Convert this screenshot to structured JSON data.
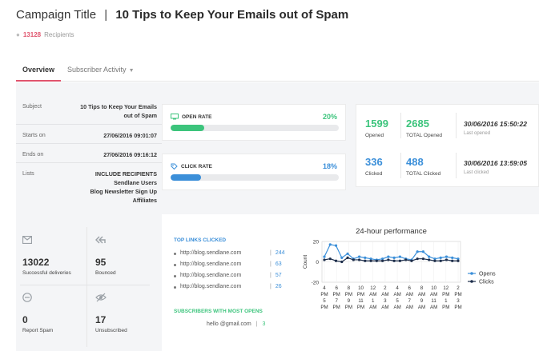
{
  "header": {
    "label": "Campaign Title",
    "separator": "|",
    "subject": "10 Tips to Keep Your Emails out of Spam",
    "recipients_count": "13128",
    "recipients_label": "Recipients"
  },
  "tabs": [
    {
      "label": "Overview",
      "active": true
    },
    {
      "label": "Subscriber Activity",
      "active": false
    }
  ],
  "details": {
    "subject_key": "Subject",
    "subject_value_line1": "10 Tips to Keep Your Emails",
    "subject_value_line2": "out of Spam",
    "starts_key": "Starts on",
    "starts_value": "27/06/2016 09:01:07",
    "ends_key": "Ends on",
    "ends_value": "27/06/2016 09:16:12",
    "lists_key": "Lists",
    "lists_values": [
      "INCLUDE RECIPIENTS",
      "Sendlane Users",
      "Blog Newsletter Sign Up",
      "Affiliates"
    ]
  },
  "open_rate": {
    "label": "OPEN RATE",
    "percent_text": "20%",
    "fraction": 0.2,
    "color": "#3cc47c",
    "icon": "monitor-icon"
  },
  "click_rate": {
    "label": "CLICK RATE",
    "percent_text": "18%",
    "fraction": 0.18,
    "color": "#3b8fd9",
    "icon": "tag-icon"
  },
  "stats": {
    "opened": {
      "value": "1599",
      "label": "Opened"
    },
    "total_opened": {
      "value": "2685",
      "label": "TOTAL Opened"
    },
    "last_opened": {
      "value": "30/06/2016 15:50:22",
      "label": "Last opened"
    },
    "clicked": {
      "value": "336",
      "label": "Clicked"
    },
    "total_clicked": {
      "value": "488",
      "label": "TOTAL Clicked"
    },
    "last_clicked": {
      "value": "30/06/2016 13:59:05",
      "label": "Last clicked"
    }
  },
  "tiles": [
    {
      "icon": "envelope-icon",
      "value": "13022",
      "label": "Successful deliveries"
    },
    {
      "icon": "reply-all-icon",
      "value": "95",
      "label": "Bounced"
    },
    {
      "icon": "minus-circle-icon",
      "value": "0",
      "label": "Report Spam"
    },
    {
      "icon": "eye-slash-icon",
      "value": "17",
      "label": "Unsubscribed"
    }
  ],
  "top_links": {
    "title": "TOP LINKS CLICKED",
    "items": [
      {
        "url": "http://blog.sendlane.com",
        "count": "244"
      },
      {
        "url": "http://blog.sendlane.com",
        "count": "63"
      },
      {
        "url": "http://blog.sendlane.com",
        "count": "57"
      },
      {
        "url": "http://blog.sendlane.com",
        "count": "26"
      }
    ]
  },
  "most_opens": {
    "title": "SUBSCRIBERS WITH MOST OPENS",
    "items": [
      {
        "email": "hello @gmail.com",
        "count": "3"
      }
    ]
  },
  "chart_data": {
    "type": "line",
    "title": "24-hour performance",
    "ylabel": "Count",
    "ylim": [
      -20,
      20
    ],
    "yticks": [
      20,
      0,
      -20
    ],
    "x_labels": [
      [
        "4",
        "PM",
        "5",
        "PM"
      ],
      [
        "6",
        "PM",
        "7",
        "PM"
      ],
      [
        "8",
        "PM",
        "9",
        "PM"
      ],
      [
        "10",
        "PM",
        "11",
        "PM"
      ],
      [
        "12",
        "AM",
        "1",
        "AM"
      ],
      [
        "2",
        "AM",
        "3",
        "AM"
      ],
      [
        "4",
        "AM",
        "5",
        "AM"
      ],
      [
        "6",
        "AM",
        "7",
        "AM"
      ],
      [
        "8",
        "AM",
        "9",
        "AM"
      ],
      [
        "10",
        "AM",
        "11",
        "AM"
      ],
      [
        "12",
        "PM",
        "1",
        "PM"
      ],
      [
        "2",
        "PM",
        "3",
        "PM"
      ]
    ],
    "series": [
      {
        "name": "Opens",
        "color": "#3b8fd9",
        "values": [
          5,
          17,
          16,
          4,
          8,
          3,
          5,
          4,
          3,
          2,
          3,
          5,
          4,
          5,
          3,
          2,
          10,
          10,
          5,
          3,
          4,
          5,
          4,
          3
        ]
      },
      {
        "name": "Clicks",
        "color": "#1c2d4a",
        "values": [
          2,
          3,
          1,
          0,
          4,
          2,
          2,
          1,
          1,
          1,
          1,
          2,
          1,
          1,
          2,
          1,
          3,
          3,
          2,
          1,
          1,
          2,
          1,
          1
        ]
      }
    ],
    "legend": "right"
  }
}
